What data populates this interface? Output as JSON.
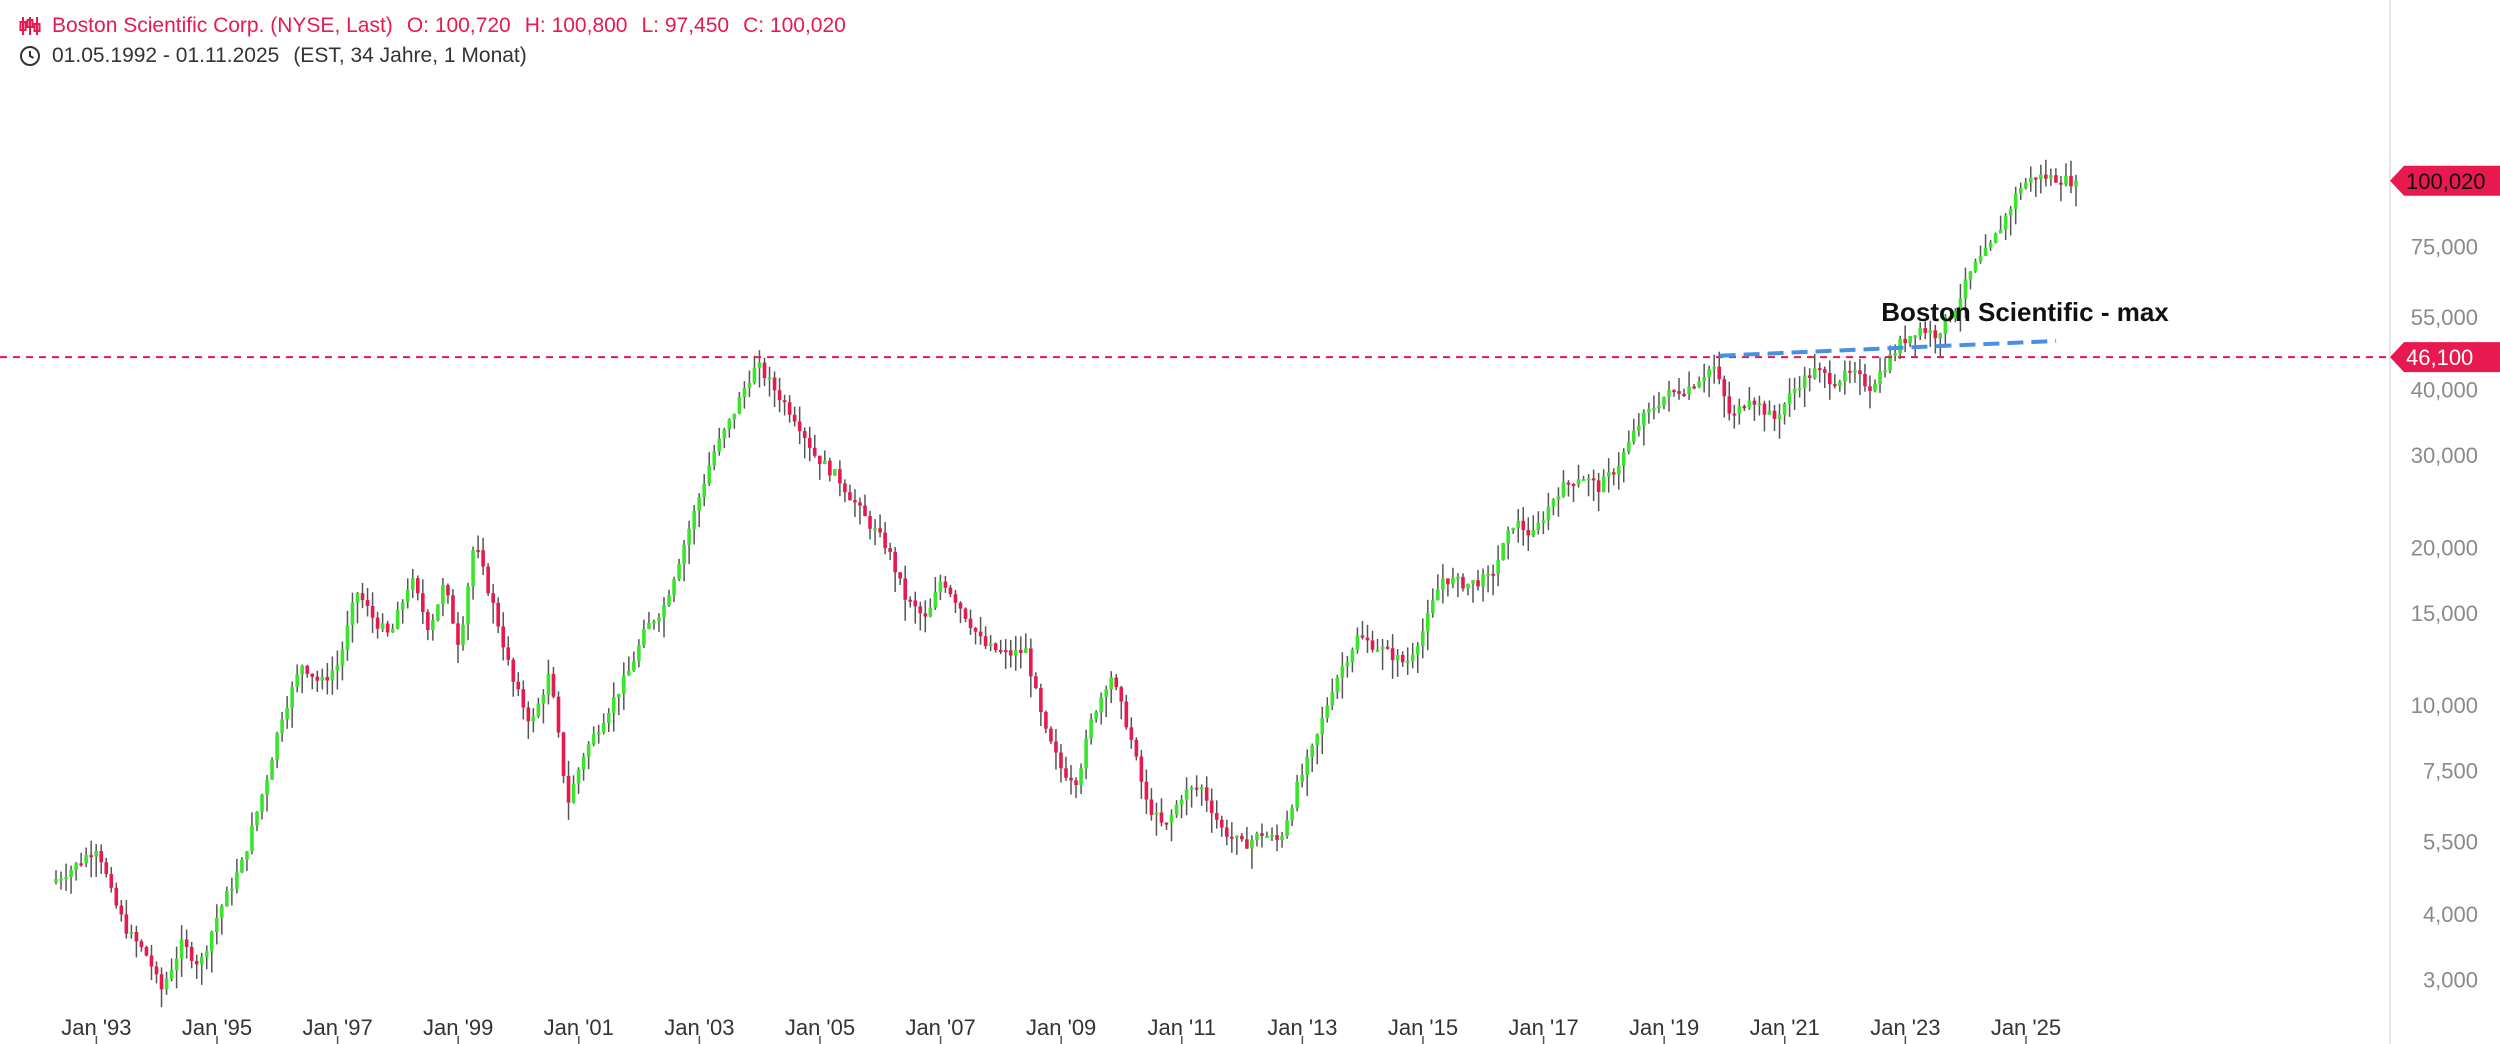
{
  "header": {
    "instrument": "Boston Scientific Corp. (NYSE, Last)",
    "open": "O: 100,720",
    "high": "H: 100,800",
    "low": "L: 97,450",
    "close": "C: 100,020",
    "range": "01.05.1992 - 01.11.2025",
    "range_detail": "(EST, 34 Jahre, 1 Monat)",
    "icons": [
      "candlestick-settings-icon",
      "clock-icon"
    ]
  },
  "colors": {
    "up": "#39e62c",
    "down": "#e8194f",
    "wick": "#555555",
    "trendline": "#4a90e2",
    "axis_text": "#8a8a8a",
    "label_bg": "#e8194f"
  },
  "chart_data": {
    "type": "candlestick",
    "scale": "log",
    "x_range": [
      1992.33,
      2025.83
    ],
    "y_range": [
      2600,
      125000
    ],
    "x_ticks": [
      {
        "label": "Jan '93",
        "x": 1993.0
      },
      {
        "label": "Jan '95",
        "x": 1995.0
      },
      {
        "label": "Jan '97",
        "x": 1997.0
      },
      {
        "label": "Jan '99",
        "x": 1999.0
      },
      {
        "label": "Jan '01",
        "x": 2001.0
      },
      {
        "label": "Jan '03",
        "x": 2003.0
      },
      {
        "label": "Jan '05",
        "x": 2005.0
      },
      {
        "label": "Jan '07",
        "x": 2007.0
      },
      {
        "label": "Jan '09",
        "x": 2009.0
      },
      {
        "label": "Jan '11",
        "x": 2011.0
      },
      {
        "label": "Jan '13",
        "x": 2013.0
      },
      {
        "label": "Jan '15",
        "x": 2015.0
      },
      {
        "label": "Jan '17",
        "x": 2017.0
      },
      {
        "label": "Jan '19",
        "x": 2019.0
      },
      {
        "label": "Jan '21",
        "x": 2021.0
      },
      {
        "label": "Jan '23",
        "x": 2023.0
      },
      {
        "label": "Jan '25",
        "x": 2025.0
      }
    ],
    "y_ticks": [
      {
        "label": "75,000",
        "v": 75000
      },
      {
        "label": "55,000",
        "v": 55000
      },
      {
        "label": "40,000",
        "v": 40000
      },
      {
        "label": "30,000",
        "v": 30000
      },
      {
        "label": "20,000",
        "v": 20000
      },
      {
        "label": "15,000",
        "v": 15000
      },
      {
        "label": "10,000",
        "v": 10000
      },
      {
        "label": "7,500",
        "v": 7500
      },
      {
        "label": "5,500",
        "v": 5500
      },
      {
        "label": "4,000",
        "v": 4000
      },
      {
        "label": "3,000",
        "v": 3000
      }
    ],
    "last_price": {
      "label": "100,020",
      "v": 100020
    },
    "max_line": {
      "label": "46,100",
      "v": 46100
    },
    "annotation": {
      "text": "Boston Scientific - max",
      "x": 2022.6,
      "v": 54000
    },
    "trendline": {
      "x1": 2019.92,
      "v1": 46400,
      "x2": 2025.5,
      "v2": 49500
    },
    "path": [
      [
        1992.33,
        4600
      ],
      [
        1992.7,
        4900
      ],
      [
        1993.1,
        5400
      ],
      [
        1993.35,
        4300
      ],
      [
        1993.6,
        3700
      ],
      [
        1993.95,
        3300
      ],
      [
        1994.15,
        2850
      ],
      [
        1994.5,
        3500
      ],
      [
        1994.8,
        3200
      ],
      [
        1995.1,
        4000
      ],
      [
        1995.5,
        5000
      ],
      [
        1995.9,
        7200
      ],
      [
        1996.15,
        9500
      ],
      [
        1996.5,
        12000
      ],
      [
        1996.8,
        11000
      ],
      [
        1997.1,
        12000
      ],
      [
        1997.4,
        16500
      ],
      [
        1997.7,
        14500
      ],
      [
        1997.95,
        13500
      ],
      [
        1998.3,
        17500
      ],
      [
        1998.6,
        14000
      ],
      [
        1998.85,
        17000
      ],
      [
        1999.1,
        13000
      ],
      [
        1999.35,
        20500
      ],
      [
        1999.7,
        15000
      ],
      [
        2000.0,
        11000
      ],
      [
        2000.3,
        9200
      ],
      [
        2000.6,
        11500
      ],
      [
        2000.9,
        6500
      ],
      [
        2001.15,
        8000
      ],
      [
        2001.5,
        9500
      ],
      [
        2001.9,
        11500
      ],
      [
        2002.2,
        14000
      ],
      [
        2002.5,
        15500
      ],
      [
        2002.9,
        21500
      ],
      [
        2003.3,
        30000
      ],
      [
        2003.6,
        35000
      ],
      [
        2003.9,
        42000
      ],
      [
        2004.05,
        44500
      ],
      [
        2004.4,
        39000
      ],
      [
        2004.7,
        35000
      ],
      [
        2005.0,
        30000
      ],
      [
        2005.4,
        27000
      ],
      [
        2005.8,
        23000
      ],
      [
        2006.2,
        20000
      ],
      [
        2006.5,
        16000
      ],
      [
        2006.85,
        14500
      ],
      [
        2007.1,
        17500
      ],
      [
        2007.4,
        15500
      ],
      [
        2007.8,
        13000
      ],
      [
        2008.2,
        12500
      ],
      [
        2008.5,
        12700
      ],
      [
        2008.8,
        9000
      ],
      [
        2009.1,
        7500
      ],
      [
        2009.35,
        7200
      ],
      [
        2009.6,
        9500
      ],
      [
        2009.9,
        11500
      ],
      [
        2010.2,
        9000
      ],
      [
        2010.5,
        6500
      ],
      [
        2010.8,
        5800
      ],
      [
        2011.1,
        6800
      ],
      [
        2011.4,
        7000
      ],
      [
        2011.75,
        5800
      ],
      [
        2012.1,
        5400
      ],
      [
        2012.4,
        5700
      ],
      [
        2012.7,
        5500
      ],
      [
        2013.0,
        7000
      ],
      [
        2013.3,
        8500
      ],
      [
        2013.6,
        11000
      ],
      [
        2014.0,
        13500
      ],
      [
        2014.4,
        12800
      ],
      [
        2014.8,
        12000
      ],
      [
        2015.1,
        14000
      ],
      [
        2015.4,
        17500
      ],
      [
        2015.8,
        17000
      ],
      [
        2016.2,
        17500
      ],
      [
        2016.6,
        22500
      ],
      [
        2016.9,
        21000
      ],
      [
        2017.3,
        25500
      ],
      [
        2017.7,
        27500
      ],
      [
        2018.0,
        26000
      ],
      [
        2018.3,
        28500
      ],
      [
        2018.7,
        35000
      ],
      [
        2019.1,
        39000
      ],
      [
        2019.5,
        40500
      ],
      [
        2019.9,
        44500
      ],
      [
        2020.2,
        35000
      ],
      [
        2020.5,
        39000
      ],
      [
        2020.9,
        35000
      ],
      [
        2021.3,
        41000
      ],
      [
        2021.6,
        43500
      ],
      [
        2021.9,
        41500
      ],
      [
        2022.2,
        43000
      ],
      [
        2022.5,
        40500
      ],
      [
        2022.8,
        45500
      ],
      [
        2023.0,
        49000
      ],
      [
        2023.3,
        52500
      ],
      [
        2023.6,
        51000
      ],
      [
        2023.9,
        57000
      ],
      [
        2024.2,
        68000
      ],
      [
        2024.5,
        75000
      ],
      [
        2024.8,
        88000
      ],
      [
        2025.0,
        98000
      ],
      [
        2025.25,
        102000
      ],
      [
        2025.5,
        101500
      ],
      [
        2025.83,
        100020
      ]
    ]
  }
}
